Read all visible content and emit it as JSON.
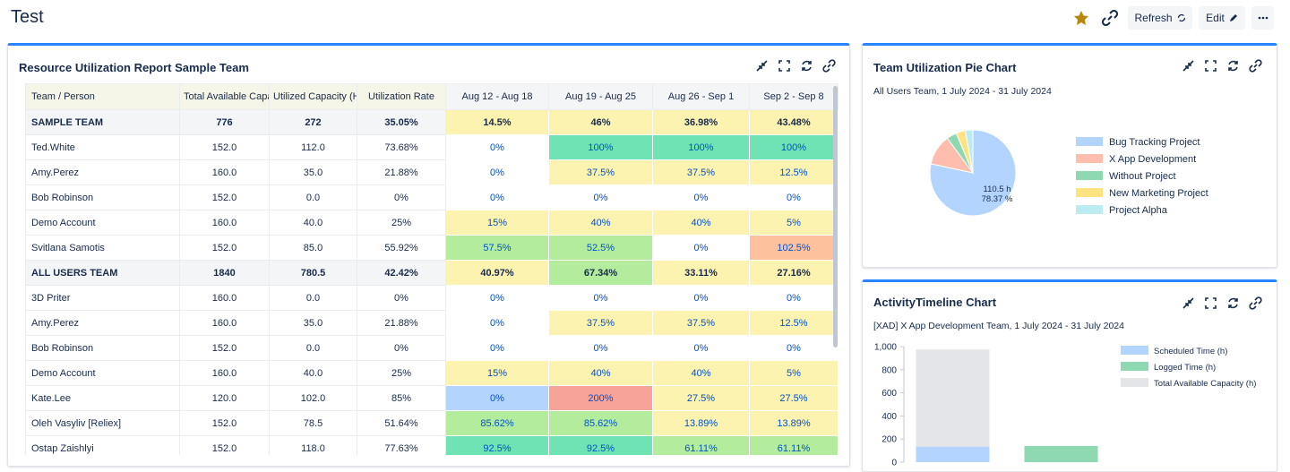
{
  "header": {
    "title": "Test",
    "buttons": [
      "Refresh",
      "Edit"
    ]
  },
  "table_widget": {
    "title": "Resource Utilization Report Sample Team",
    "columns": [
      "Team / Person",
      "Total Available Capacity (Hours)",
      "Utilized Capacity (Hours)",
      "Utilization Rate",
      "Aug 12 - Aug 18",
      "Aug 19 - Aug 25",
      "Aug 26 - Sep 1",
      "Sep 2 - Sep 8"
    ],
    "rows": [
      {
        "team": true,
        "cells": [
          "SAMPLE TEAM",
          "776",
          "272",
          "35.05%",
          "14.5%",
          "46%",
          "36.98%",
          "43.48%"
        ],
        "colors": [
          "#fdf3b0",
          "#fdf3b0",
          "#fdf3b0",
          "#fdf3b0"
        ]
      },
      {
        "team": false,
        "cells": [
          "Ted.White",
          "152.0",
          "112.0",
          "73.68%",
          "0%",
          "100%",
          "100%",
          "100%"
        ],
        "colors": [
          "#ffffff",
          "#6fe3b3",
          "#6fe3b3",
          "#6fe3b3"
        ]
      },
      {
        "team": false,
        "cells": [
          "Amy.Perez",
          "160.0",
          "35.0",
          "21.88%",
          "0%",
          "37.5%",
          "37.5%",
          "12.5%"
        ],
        "colors": [
          "#ffffff",
          "#fdf3b0",
          "#fdf3b0",
          "#fdf3b0"
        ]
      },
      {
        "team": false,
        "cells": [
          "Bob Robinson",
          "152.0",
          "0.0",
          "0%",
          "0%",
          "0%",
          "0%",
          "0%"
        ],
        "colors": [
          "#ffffff",
          "#ffffff",
          "#ffffff",
          "#ffffff"
        ]
      },
      {
        "team": false,
        "cells": [
          "Demo Account",
          "160.0",
          "40.0",
          "25%",
          "15%",
          "40%",
          "40%",
          "5%"
        ],
        "colors": [
          "#fdf3b0",
          "#fdf3b0",
          "#fdf3b0",
          "#fdf3b0"
        ]
      },
      {
        "team": false,
        "cells": [
          "Svitlana Samotis",
          "152.0",
          "85.0",
          "55.92%",
          "57.5%",
          "52.5%",
          "0%",
          "102.5%"
        ],
        "colors": [
          "#b3ec9c",
          "#b3ec9c",
          "#ffffff",
          "#fdc19e"
        ]
      },
      {
        "team": true,
        "cells": [
          "ALL USERS TEAM",
          "1840",
          "780.5",
          "42.42%",
          "40.97%",
          "67.34%",
          "33.11%",
          "27.16%"
        ],
        "colors": [
          "#fdf3b0",
          "#b3ec9c",
          "#fdf3b0",
          "#fdf3b0"
        ]
      },
      {
        "team": false,
        "cells": [
          "3D Priter",
          "160.0",
          "0.0",
          "0%",
          "0%",
          "0%",
          "0%",
          "0%"
        ],
        "colors": [
          "#ffffff",
          "#ffffff",
          "#ffffff",
          "#ffffff"
        ]
      },
      {
        "team": false,
        "cells": [
          "Amy.Perez",
          "160.0",
          "35.0",
          "21.88%",
          "0%",
          "37.5%",
          "37.5%",
          "12.5%"
        ],
        "colors": [
          "#ffffff",
          "#fdf3b0",
          "#fdf3b0",
          "#fdf3b0"
        ]
      },
      {
        "team": false,
        "cells": [
          "Bob Robinson",
          "152.0",
          "0.0",
          "0%",
          "0%",
          "0%",
          "0%",
          "0%"
        ],
        "colors": [
          "#ffffff",
          "#ffffff",
          "#ffffff",
          "#ffffff"
        ]
      },
      {
        "team": false,
        "cells": [
          "Demo Account",
          "160.0",
          "40.0",
          "25%",
          "15%",
          "40%",
          "40%",
          "5%"
        ],
        "colors": [
          "#fdf3b0",
          "#fdf3b0",
          "#fdf3b0",
          "#fdf3b0"
        ]
      },
      {
        "team": false,
        "cells": [
          "Kate.Lee",
          "120.0",
          "102.0",
          "85%",
          "0%",
          "200%",
          "27.5%",
          "27.5%"
        ],
        "colors": [
          "#b3d4fc",
          "#f7a39a",
          "#fdf3b0",
          "#fdf3b0"
        ]
      },
      {
        "team": false,
        "cells": [
          "Oleh Vasyliv [Reliex]",
          "152.0",
          "78.5",
          "51.64%",
          "85.62%",
          "85.62%",
          "13.89%",
          "13.89%"
        ],
        "colors": [
          "#b3ec9c",
          "#b3ec9c",
          "#fdf3b0",
          "#fdf3b0"
        ]
      },
      {
        "team": false,
        "cells": [
          "Ostap Zaishlyi",
          "152.0",
          "118.0",
          "77.63%",
          "92.5%",
          "92.5%",
          "61.11%",
          "61.11%"
        ],
        "colors": [
          "#6fe3b3",
          "#6fe3b3",
          "#b3ec9c",
          "#b3ec9c"
        ]
      }
    ]
  },
  "chart_data": [
    {
      "type": "pie",
      "title": "Team Utilization Pie Chart",
      "subtitle": "All Users Team, 1 July 2024 - 31 July 2024",
      "categories": [
        "Bug Tracking Project",
        "X App Development",
        "Without Project",
        "New Marketing Project",
        "Project Alpha"
      ],
      "values": [
        78.37,
        11.5,
        3.8,
        3.5,
        2.83
      ],
      "value_labels": [
        "78.37 %",
        null,
        null,
        null,
        null
      ],
      "annotations": [
        "110.5 h"
      ],
      "colors": [
        "#b3d4ff",
        "#ffbdad",
        "#8ed9b2",
        "#ffe380",
        "#bcecf2"
      ]
    },
    {
      "type": "bar",
      "title": "ActivityTimeline Chart",
      "subtitle": "[XAD] X App Development Team, 1 July 2024 - 31 July 2024",
      "categories": [
        null,
        null
      ],
      "series": [
        {
          "name": "Scheduled Time (h)",
          "color": "#b3d4ff",
          "values": [
            132,
            null
          ]
        },
        {
          "name": "Logged Time (h)",
          "color": "#8ed9b2",
          "values": [
            null,
            140
          ]
        },
        {
          "name": "Total Available Capacity (h)",
          "color": "#e4e5e8",
          "values": [
            975,
            null
          ]
        }
      ],
      "ylim": [
        0,
        1000
      ],
      "yticks": [
        0,
        200,
        400,
        600,
        800,
        {
          "value": 1000,
          "label": "1,000"
        }
      ]
    }
  ]
}
